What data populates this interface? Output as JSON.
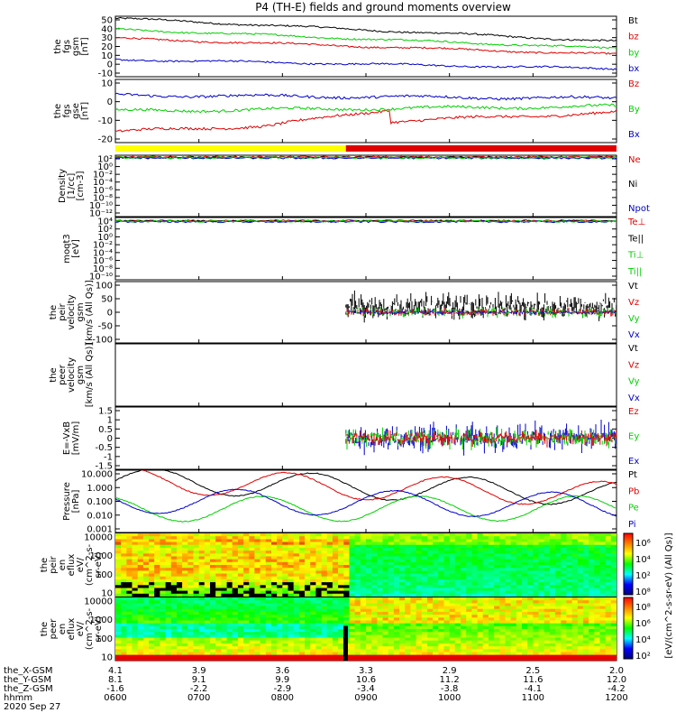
{
  "title": "P4 (TH-E) fields and ground moments overview",
  "colors": {
    "black": "#000000",
    "red": "#e00000",
    "green": "#00d000",
    "blue": "#0000cc",
    "yellow": "#ffff00"
  },
  "chart_data": [
    {
      "type": "line",
      "id": "fgs_gsm",
      "ylabel_lines": [
        "the",
        "fgs",
        "gsm",
        "[nT]"
      ],
      "yticks": [
        "50",
        "40",
        "30",
        "20",
        "10",
        "0",
        "-10"
      ],
      "ylim": [
        -10,
        50
      ],
      "series": [
        {
          "name": "Bt",
          "color": "black",
          "start": 48,
          "end": 25
        },
        {
          "name": "bz",
          "color": "red",
          "start": 28,
          "end": 12
        },
        {
          "name": "by",
          "color": "green",
          "start": 37,
          "end": 18
        },
        {
          "name": "bx",
          "color": "blue",
          "start": 7,
          "end": -2
        }
      ]
    },
    {
      "type": "line",
      "id": "fgs_gse",
      "ylabel_lines": [
        "the",
        "fgs",
        "gse",
        "[nT]"
      ],
      "yticks": [
        "10",
        "0",
        "-10",
        "-20"
      ],
      "ylim": [
        -25,
        15
      ],
      "series": [
        {
          "name": "Bz",
          "color": "red",
          "start": -18,
          "end": -6
        },
        {
          "name": "By",
          "color": "green",
          "start": -5,
          "end": -2
        },
        {
          "name": "Bx",
          "color": "blue",
          "start": 5,
          "end": 3
        }
      ]
    },
    {
      "type": "status_bar",
      "id": "mode_bar",
      "segments": [
        {
          "from": 0,
          "to": 0.46,
          "color": "yellow"
        },
        {
          "from": 0.46,
          "to": 1,
          "color": "red"
        }
      ]
    },
    {
      "type": "line",
      "id": "density",
      "ylabel_lines": [
        "Density",
        "[1/cc]",
        "[cm-3]"
      ],
      "yticks": [
        "10²",
        "10⁰",
        "10⁻²",
        "10⁻⁴",
        "10⁻⁶",
        "10⁻⁸",
        "10⁻¹⁰",
        "10⁻¹²"
      ],
      "ylim": [
        -12,
        2
      ],
      "log": true,
      "series": [
        {
          "name": "Ne",
          "color": "red"
        },
        {
          "name": "Ni",
          "color": "black"
        },
        {
          "name": "Npot",
          "color": "blue"
        }
      ]
    },
    {
      "type": "line",
      "id": "temperature",
      "ylabel_lines": [
        "moqt3",
        "[eV]"
      ],
      "yticks": [
        "10⁴",
        "10²",
        "10⁰",
        "10⁻²",
        "10⁻⁴",
        "10⁻⁶",
        "10⁻⁸",
        "10⁻¹⁰"
      ],
      "ylim": [
        -10,
        4
      ],
      "log": true,
      "series": [
        {
          "name": "Te⊥",
          "color": "red"
        },
        {
          "name": "Te||",
          "color": "black"
        },
        {
          "name": "Ti⊥",
          "color": "green"
        },
        {
          "name": "Ti||",
          "color": "green"
        }
      ]
    },
    {
      "type": "line",
      "id": "peir_velocity",
      "ylabel_lines": [
        "the",
        "peir",
        "velocity",
        "gsm",
        "[km/s (All Qs)]"
      ],
      "yticks": [
        "100",
        "50",
        "0",
        "-50",
        "-100"
      ],
      "ylim": [
        -100,
        100
      ],
      "series": [
        {
          "name": "Vt",
          "color": "black"
        },
        {
          "name": "Vz",
          "color": "red"
        },
        {
          "name": "Vy",
          "color": "green"
        },
        {
          "name": "Vx",
          "color": "blue"
        }
      ]
    },
    {
      "type": "line",
      "id": "peer_velocity",
      "ylabel_lines": [
        "the",
        "peer",
        "velocity",
        "gsm",
        "[km/s (All Qs)]"
      ],
      "yticks": [],
      "series": [
        {
          "name": "Vt",
          "color": "black"
        },
        {
          "name": "Vz",
          "color": "red"
        },
        {
          "name": "Vy",
          "color": "green"
        },
        {
          "name": "Vx",
          "color": "blue"
        }
      ]
    },
    {
      "type": "line",
      "id": "efield",
      "ylabel_lines": [
        "E=-VxB",
        "[mV/m]"
      ],
      "yticks": [
        "1.5",
        "1",
        "0.5",
        "0",
        "-0.5",
        "-1",
        "-1.5"
      ],
      "ylim": [
        -1.5,
        1.5
      ],
      "series": [
        {
          "name": "Ez",
          "color": "red"
        },
        {
          "name": "Ey",
          "color": "green"
        },
        {
          "name": "Ex",
          "color": "blue"
        }
      ]
    },
    {
      "type": "line",
      "id": "pressure",
      "ylabel_lines": [
        "Pressure",
        "[nPa]"
      ],
      "yticks": [
        "10.000",
        "1.000",
        "0.100",
        "0.010",
        "0.001"
      ],
      "ylim": [
        -3,
        1
      ],
      "log": true,
      "series": [
        {
          "name": "Pt",
          "color": "black",
          "start": 0.35,
          "end": -0.5
        },
        {
          "name": "Pb",
          "color": "red",
          "start": 0.35,
          "end": -0.55
        },
        {
          "name": "Pe",
          "color": "green",
          "start": -1.5,
          "end": -1.45
        },
        {
          "name": "Pi",
          "color": "blue",
          "start": -0.95,
          "end": -1.25
        }
      ]
    },
    {
      "type": "heatmap",
      "id": "peir_eflux",
      "ylabel_lines": [
        "the",
        "peir",
        "en",
        "eflux",
        "eV/",
        "(cm^2-s-",
        "sr-eV)"
      ],
      "yticks": [
        "10000",
        "1000",
        "100",
        "10"
      ],
      "ylim": [
        1,
        4.2
      ],
      "log": true
    },
    {
      "type": "heatmap",
      "id": "peer_eflux",
      "ylabel_lines": [
        "the",
        "peer",
        "en",
        "eflux",
        "eV/",
        "(cm^2-s-",
        "sr-eV)"
      ],
      "yticks": [
        "10000",
        "1000",
        "100",
        "10"
      ],
      "ylim": [
        1,
        4.2
      ],
      "log": true
    }
  ],
  "colorbar": {
    "ticks_top": [
      "10⁶",
      "10⁴",
      "10²",
      "10⁸"
    ],
    "ticks_bottom": [
      "10⁸",
      "10⁶",
      "10⁴",
      "10²"
    ],
    "label": "[eV/(cm^2-s-sr-eV) (All Qs)]"
  },
  "xaxis": {
    "rows": [
      {
        "label": "the_X-GSM",
        "values": [
          "4.1",
          "3.9",
          "3.6",
          "3.3",
          "2.9",
          "2.5",
          "2.0"
        ]
      },
      {
        "label": "the_Y-GSM",
        "values": [
          "8.1",
          "9.1",
          "9.9",
          "10.6",
          "11.2",
          "11.6",
          "12.0"
        ]
      },
      {
        "label": "the_Z-GSM",
        "values": [
          "-1.6",
          "-2.2",
          "-2.9",
          "-3.4",
          "-3.8",
          "-4.1",
          "-4.2"
        ]
      },
      {
        "label": "hhmm",
        "values": [
          "0600",
          "0700",
          "0800",
          "0900",
          "1000",
          "1100",
          "1200"
        ]
      }
    ],
    "date": "2020 Sep 27"
  }
}
